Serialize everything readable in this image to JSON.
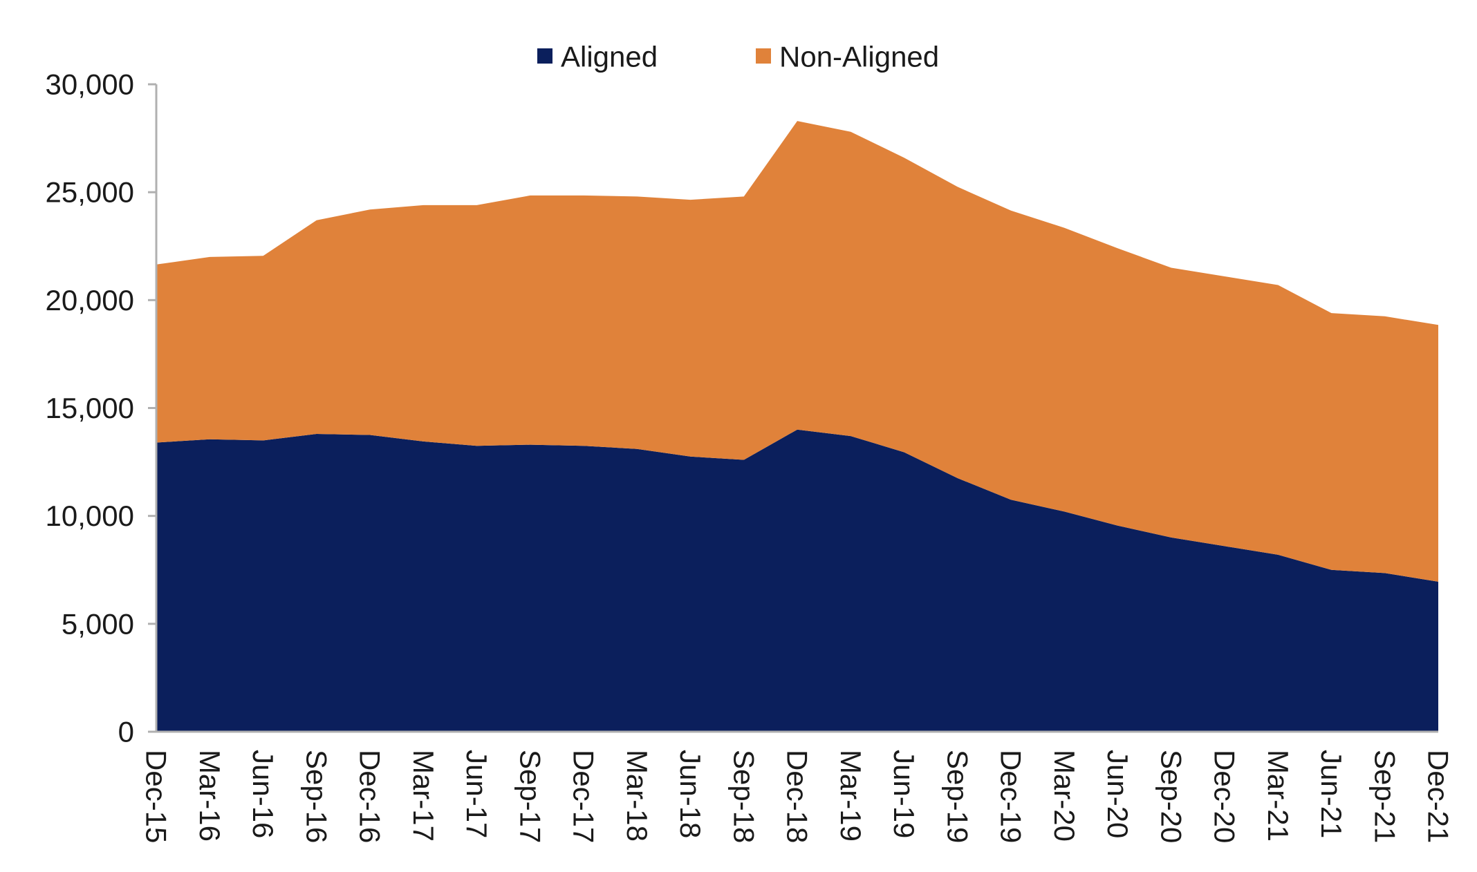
{
  "chart_data": {
    "type": "area",
    "stacked": true,
    "categories": [
      "Dec-15",
      "Mar-16",
      "Jun-16",
      "Sep-16",
      "Dec-16",
      "Mar-17",
      "Jun-17",
      "Sep-17",
      "Dec-17",
      "Mar-18",
      "Jun-18",
      "Sep-18",
      "Dec-18",
      "Mar-19",
      "Jun-19",
      "Sep-19",
      "Dec-19",
      "Mar-20",
      "Jun-20",
      "Sep-20",
      "Dec-20",
      "Mar-21",
      "Jun-21",
      "Sep-21",
      "Dec-21"
    ],
    "series": [
      {
        "name": "Aligned",
        "color": "#0b1f5c",
        "values": [
          13400,
          13550,
          13500,
          13800,
          13750,
          13450,
          13250,
          13300,
          13250,
          13100,
          12750,
          12600,
          14000,
          13700,
          12950,
          11750,
          10750,
          10200,
          9550,
          9000,
          8600,
          8200,
          7500,
          7350,
          6950
        ]
      },
      {
        "name": "Non-Aligned",
        "color": "#e0823a",
        "values": [
          8250,
          8450,
          8550,
          9900,
          10450,
          10950,
          11150,
          11550,
          11600,
          11700,
          11900,
          12200,
          14300,
          14100,
          13650,
          13500,
          13400,
          13150,
          12850,
          12500,
          12500,
          12500,
          11900,
          11900,
          11900
        ]
      }
    ],
    "xlabel": "",
    "ylabel": "",
    "ylim": [
      0,
      30000
    ],
    "yticks": [
      0,
      5000,
      10000,
      15000,
      20000,
      25000,
      30000
    ],
    "ytick_labels": [
      "0",
      "5,000",
      "10,000",
      "15,000",
      "20,000",
      "25,000",
      "30,000"
    ],
    "grid": false,
    "legend_position": "top-center"
  }
}
